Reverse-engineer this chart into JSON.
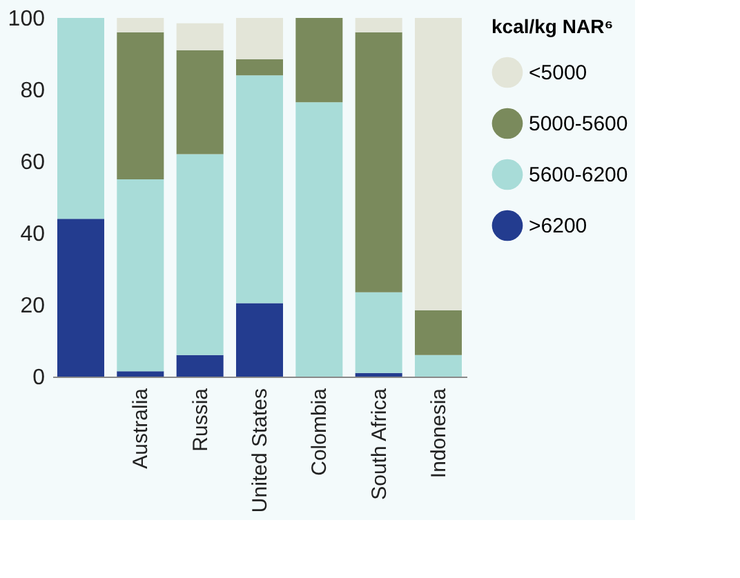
{
  "chart_data": {
    "type": "bar",
    "stacked": true,
    "legend_title": "kcal/kg NAR⁶",
    "legend": "right",
    "categories": [
      null,
      "Australia",
      "Russia",
      "United States",
      "Colombia",
      "South Africa",
      "Indonesia"
    ],
    "series": [
      {
        "name": ">6200",
        "color": "#233c8f",
        "values": [
          44,
          1.5,
          6,
          20.5,
          0,
          1,
          0
        ]
      },
      {
        "name": "5600-6200",
        "color": "#a8dcd8",
        "values": [
          56,
          53.5,
          56,
          63.5,
          76.5,
          22.5,
          6
        ]
      },
      {
        "name": "5000-5600",
        "color": "#7a8a5c",
        "values": [
          0,
          41,
          29,
          4.5,
          23.5,
          72.5,
          12.5
        ]
      },
      {
        "name": "<5000",
        "color": "#e3e5d8",
        "values": [
          0,
          4,
          7.5,
          11.5,
          0,
          4,
          81.5
        ]
      }
    ],
    "ylim": [
      0,
      100
    ],
    "yticks": [
      0,
      20,
      40,
      60,
      80,
      100
    ],
    "grid": false
  }
}
